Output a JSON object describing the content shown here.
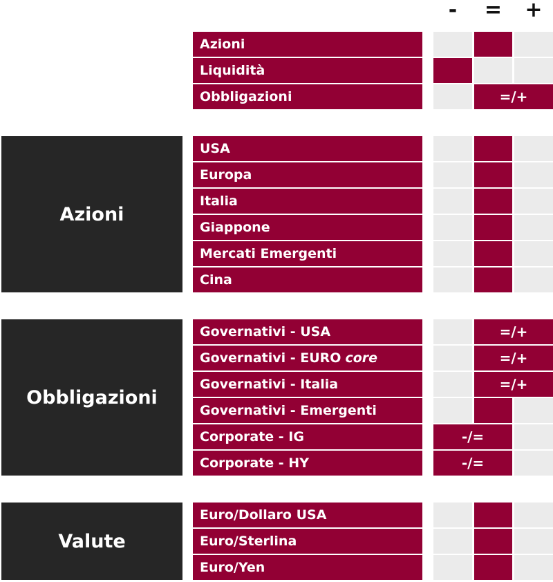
{
  "header": {
    "columns": [
      "-",
      "=",
      "+"
    ]
  },
  "groups": [
    {
      "rows": [
        {
          "label": "Azioni",
          "view": "="
        },
        {
          "label": "Liquidità",
          "view": "-"
        },
        {
          "label": "Obbligazioni",
          "view": "=/+"
        }
      ]
    },
    {
      "title": "Azioni",
      "rows": [
        {
          "label": "USA",
          "view": "="
        },
        {
          "label": "Europa",
          "view": "="
        },
        {
          "label": "Italia",
          "view": "="
        },
        {
          "label": "Giappone",
          "view": "="
        },
        {
          "label": "Mercati Emergenti",
          "view": "="
        },
        {
          "label": "Cina",
          "view": "="
        }
      ]
    },
    {
      "title": "Obbligazioni",
      "rows": [
        {
          "label": "Governativi - USA",
          "view": "=/+"
        },
        {
          "label": "Governativi - EURO",
          "label_emphasis": "core",
          "view": "=/+"
        },
        {
          "label": "Governativi - Italia",
          "view": "=/+"
        },
        {
          "label": "Governativi - Emergenti",
          "view": "="
        },
        {
          "label": "Corporate - IG",
          "view": "-/="
        },
        {
          "label": "Corporate - HY",
          "view": "-/="
        }
      ]
    },
    {
      "title": "Valute",
      "rows": [
        {
          "label": "Euro/Dollaro USA",
          "view": "="
        },
        {
          "label": "Euro/Sterlina",
          "view": "="
        },
        {
          "label": "Euro/Yen",
          "view": "="
        }
      ]
    }
  ]
}
